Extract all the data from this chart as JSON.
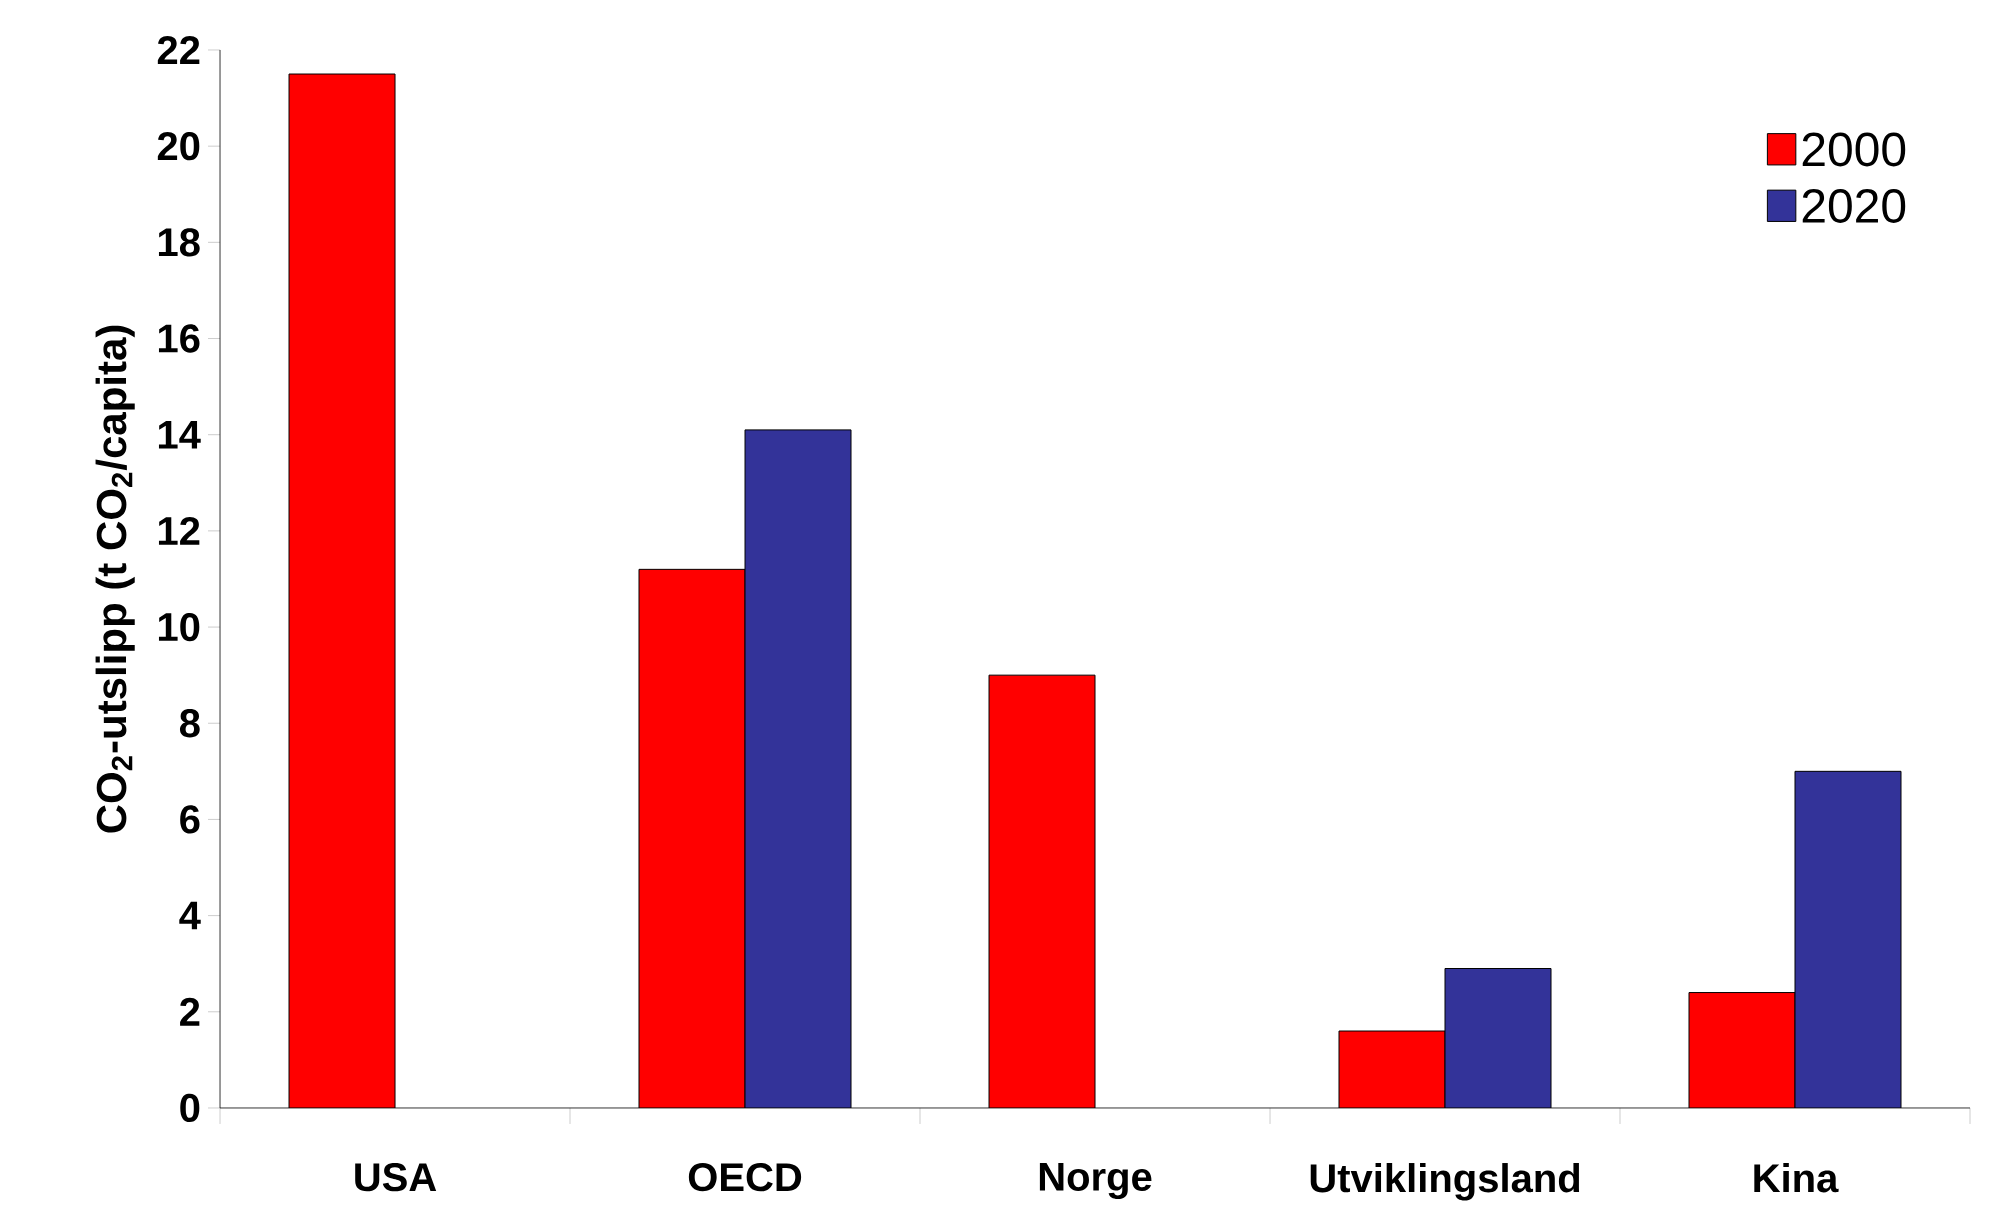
{
  "chart_data": {
    "type": "bar",
    "ylabel": "CO$_{2}$-utslipp (t CO$_{2}$/capita)",
    "categories": [
      "USA",
      "OECD",
      "Norge",
      "Utviklingsland",
      "Kina"
    ],
    "series": [
      {
        "name": "2000",
        "color": "#ff0000",
        "values": [
          21.5,
          11.2,
          9.0,
          1.6,
          2.4
        ]
      },
      {
        "name": "2020",
        "color": "#333399",
        "values": [
          null,
          14.1,
          null,
          2.9,
          7.0
        ]
      }
    ],
    "ylim": [
      0,
      22
    ],
    "yticks": [
      0,
      2,
      4,
      6,
      8,
      10,
      12,
      14,
      16,
      18,
      20,
      22
    ],
    "legend": "top right",
    "grid": false
  }
}
